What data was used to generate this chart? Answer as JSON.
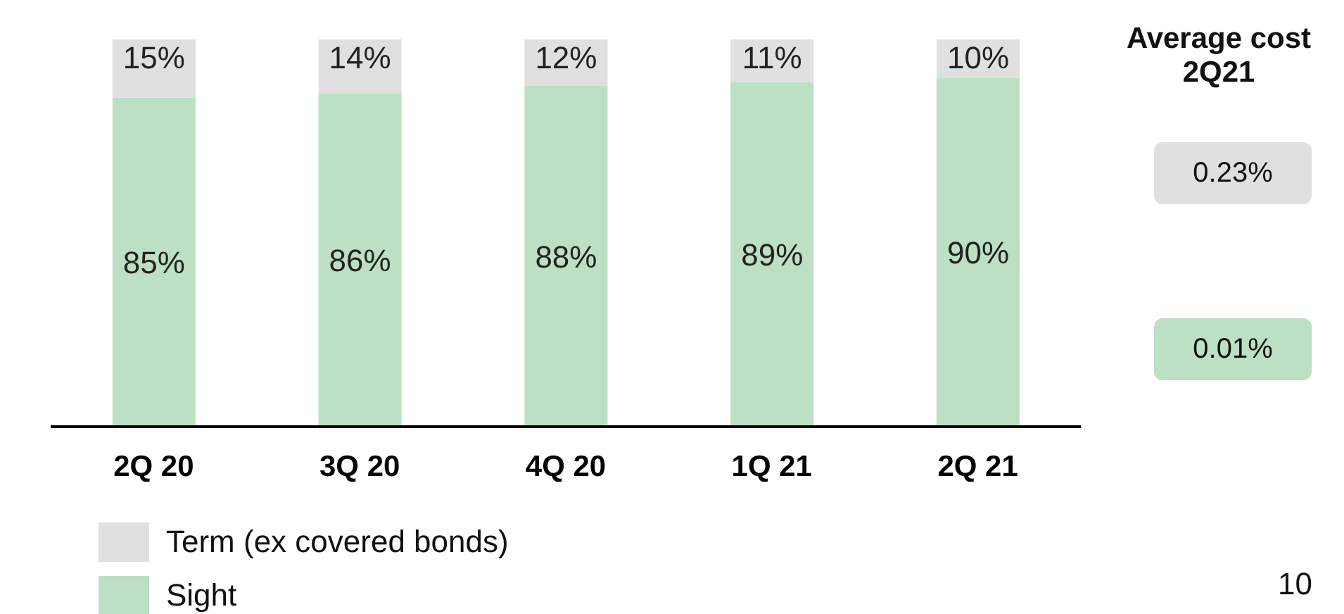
{
  "chart_data": {
    "type": "bar",
    "stacked": true,
    "legend": "bottom left",
    "categories": [
      "2Q 20",
      "3Q 20",
      "4Q 20",
      "1Q 21",
      "2Q 21"
    ],
    "series": [
      {
        "name": "Sight",
        "color": "#bde0c4",
        "values": [
          85,
          86,
          88,
          89,
          90
        ],
        "value_labels": [
          "85%",
          "86%",
          "88%",
          "89%",
          "90%"
        ]
      },
      {
        "name": "Term (ex covered bonds)",
        "color": "#e0e0e0",
        "values": [
          15,
          14,
          12,
          11,
          10
        ],
        "value_labels": [
          "15%",
          "14%",
          "12%",
          "11%",
          "10%"
        ]
      }
    ],
    "annotations": [
      "Average cost 2Q21",
      "0.23%",
      "0.01%",
      "10"
    ]
  }
}
